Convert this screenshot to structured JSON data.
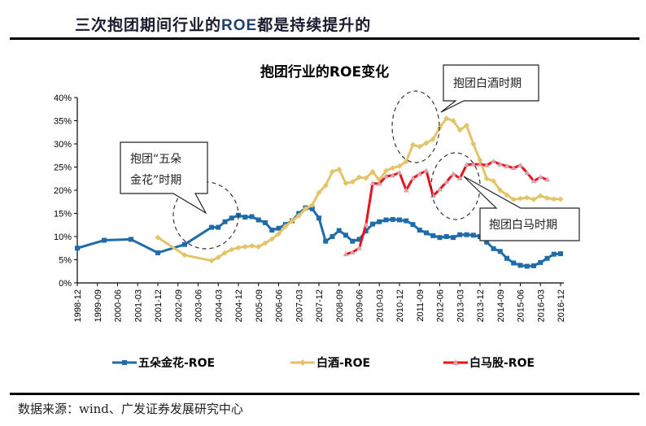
{
  "header": {
    "title_pre": "三次抱团期间行业的",
    "title_roe": "ROE",
    "title_post": "都是持续提升的"
  },
  "footer": {
    "source": "数据来源：wind、广发证券发展研究中心"
  },
  "chart_data": {
    "type": "line",
    "title": "抱团行业的ROE变化",
    "xlabel": "",
    "ylabel": "",
    "ylim": [
      0,
      40
    ],
    "yticks": [
      "0%",
      "5%",
      "10%",
      "15%",
      "20%",
      "25%",
      "30%",
      "35%",
      "40%"
    ],
    "xticks": [
      "1998-12",
      "1999-09",
      "2000-06",
      "2001-03",
      "2001-12",
      "2002-09",
      "2003-06",
      "2004-03",
      "2004-12",
      "2005-09",
      "2006-06",
      "2007-03",
      "2007-12",
      "2008-09",
      "2009-06",
      "2010-03",
      "2010-12",
      "2011-09",
      "2012-06",
      "2013-03",
      "2013-12",
      "2014-09",
      "2015-06",
      "2016-03",
      "2016-12"
    ],
    "grid": false,
    "legend": "bottom",
    "series": [
      {
        "name": "五朵金花-ROE",
        "color": "#1f6ca8",
        "marker": "square",
        "x": [
          "1998-12",
          "1999-12",
          "2000-12",
          "2001-12",
          "2002-12",
          "2003-12",
          "2004-03",
          "2004-06",
          "2004-09",
          "2004-12",
          "2005-03",
          "2005-06",
          "2005-09",
          "2005-12",
          "2006-03",
          "2006-06",
          "2006-09",
          "2006-12",
          "2007-03",
          "2007-06",
          "2007-09",
          "2007-12",
          "2008-03",
          "2008-06",
          "2008-09",
          "2008-12",
          "2009-03",
          "2009-06",
          "2009-09",
          "2009-12",
          "2010-03",
          "2010-06",
          "2010-09",
          "2010-12",
          "2011-03",
          "2011-06",
          "2011-09",
          "2011-12",
          "2012-03",
          "2012-06",
          "2012-09",
          "2012-12",
          "2013-03",
          "2013-06",
          "2013-09",
          "2013-12",
          "2014-03",
          "2014-06",
          "2014-09",
          "2014-12",
          "2015-03",
          "2015-06",
          "2015-09",
          "2015-12",
          "2016-03",
          "2016-06",
          "2016-09",
          "2016-12"
        ],
        "y": [
          7.5,
          9.2,
          9.4,
          6.5,
          8.3,
          12,
          12,
          13.2,
          14,
          14.6,
          14.2,
          14.3,
          13.6,
          13,
          11.4,
          11.8,
          12.6,
          13.4,
          15,
          16.2,
          16,
          14,
          9,
          10,
          11.3,
          10.3,
          9,
          9.4,
          11.2,
          12.7,
          13.2,
          13.6,
          13.7,
          13.6,
          13.4,
          12.6,
          11.4,
          10.8,
          10.2,
          9.8,
          10,
          9.8,
          10.4,
          10.4,
          10.3,
          10,
          8.8,
          7.4,
          6.8,
          5.3,
          4.3,
          3.8,
          3.6,
          3.7,
          4.4,
          5.3,
          6.2,
          6.3
        ]
      },
      {
        "name": "白酒-ROE",
        "color": "#e3c46a",
        "marker": "diamond",
        "x": [
          "2001-12",
          "2002-12",
          "2003-12",
          "2004-03",
          "2004-06",
          "2004-09",
          "2004-12",
          "2005-03",
          "2005-06",
          "2005-09",
          "2005-12",
          "2006-03",
          "2006-06",
          "2006-09",
          "2006-12",
          "2007-03",
          "2007-06",
          "2007-09",
          "2007-12",
          "2008-03",
          "2008-06",
          "2008-09",
          "2008-12",
          "2009-03",
          "2009-06",
          "2009-09",
          "2009-12",
          "2010-03",
          "2010-06",
          "2010-09",
          "2010-12",
          "2011-03",
          "2011-06",
          "2011-09",
          "2011-12",
          "2012-03",
          "2012-06",
          "2012-09",
          "2012-12",
          "2013-03",
          "2013-06",
          "2013-09",
          "2013-12",
          "2014-03",
          "2014-06",
          "2014-09",
          "2014-12",
          "2015-03",
          "2015-06",
          "2015-09",
          "2015-12",
          "2016-03",
          "2016-06",
          "2016-09",
          "2016-12"
        ],
        "y": [
          9.8,
          6,
          4.8,
          5.5,
          6.5,
          7.2,
          7.6,
          7.8,
          8,
          7.8,
          8.6,
          9.5,
          10.6,
          12.2,
          13.4,
          14.5,
          16,
          16.8,
          19.5,
          21,
          24,
          24.5,
          21.5,
          21.8,
          22.8,
          22.6,
          24,
          22.2,
          24.2,
          24.8,
          25.2,
          26.2,
          29.8,
          29.4,
          30.2,
          31,
          33.5,
          35.5,
          35,
          33,
          34,
          30,
          26.5,
          22.5,
          22,
          20,
          19,
          18,
          18.2,
          18.4,
          18,
          18.8,
          18.3,
          18.1,
          18.1
        ]
      },
      {
        "name": "白马股-ROE",
        "color": "#e8141c",
        "marker": "triangle",
        "x": [
          "2008-12",
          "2009-03",
          "2009-06",
          "2009-09",
          "2009-12",
          "2010-03",
          "2010-06",
          "2010-09",
          "2010-12",
          "2011-03",
          "2011-06",
          "2011-09",
          "2011-12",
          "2012-03",
          "2012-06",
          "2012-09",
          "2012-12",
          "2013-03",
          "2013-06",
          "2013-09",
          "2013-12",
          "2014-03",
          "2014-06",
          "2014-09",
          "2014-12",
          "2015-03",
          "2015-06",
          "2015-09",
          "2015-12",
          "2016-03",
          "2016-06"
        ],
        "y": [
          6.2,
          6.6,
          7.5,
          12.5,
          21.5,
          21.4,
          23,
          23.2,
          23.8,
          20,
          22.6,
          23.5,
          24.2,
          18.8,
          20.2,
          21.8,
          23.5,
          22.6,
          25.5,
          25.6,
          25.6,
          25.4,
          26.2,
          25.6,
          25.2,
          24.8,
          25.4,
          23.8,
          22,
          22.8,
          22.3
        ]
      }
    ],
    "annotations": [
      "抱团“五朵",
      "金花”时期",
      "抱团白酒时期",
      "抱团白马时期"
    ]
  }
}
